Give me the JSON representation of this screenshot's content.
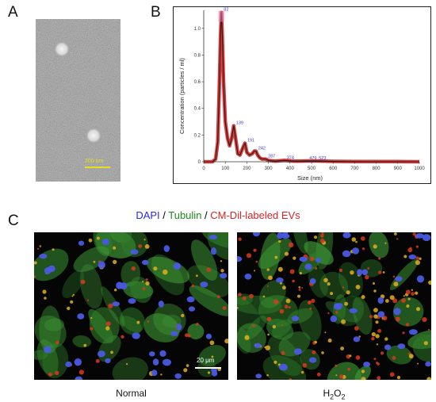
{
  "panels": {
    "a": "A",
    "b": "B",
    "c": "C"
  },
  "tem": {
    "scale_label": "200 nm",
    "scale_color": "#e7e01a"
  },
  "chart_data": {
    "type": "line",
    "xlabel": "Size (nm)",
    "ylabel": "Concentration (particles / ml)",
    "xlim": [
      0,
      1000
    ],
    "ylim": [
      0,
      1.1
    ],
    "x_ticks": [
      "0",
      "100",
      "200",
      "300",
      "400",
      "500",
      "600",
      "700",
      "800",
      "900",
      "1000"
    ],
    "y_ticks": [
      "0",
      "0.2",
      "0.4",
      "0.6",
      "0.8",
      "1.0"
    ],
    "grid": false,
    "series": [
      {
        "color": "#111111",
        "band_color": "#cc1a1a",
        "x": [
          0,
          40,
          55,
          65,
          72,
          78,
          82,
          86,
          92,
          100,
          110,
          120,
          130,
          139,
          148,
          158,
          168,
          180,
          191,
          200,
          212,
          225,
          235,
          242,
          250,
          260,
          270,
          287,
          300,
          330,
          374,
          420,
          479,
          523,
          600,
          700,
          800,
          900,
          1000
        ],
        "y": [
          0,
          0,
          0.02,
          0.15,
          0.55,
          0.95,
          1.12,
          0.95,
          0.6,
          0.3,
          0.18,
          0.12,
          0.18,
          0.27,
          0.17,
          0.06,
          0.05,
          0.1,
          0.14,
          0.07,
          0.05,
          0.06,
          0.08,
          0.08,
          0.05,
          0.03,
          0.02,
          0.02,
          0.01,
          0.005,
          0.01,
          0.005,
          0.006,
          0.006,
          0.003,
          0.002,
          0.001,
          0.001,
          0
        ]
      }
    ],
    "peak_labels": [
      {
        "x": 82,
        "y": 1.12,
        "text": "82"
      },
      {
        "x": 139,
        "y": 0.27,
        "text": "139"
      },
      {
        "x": 191,
        "y": 0.14,
        "text": "191"
      },
      {
        "x": 242,
        "y": 0.08,
        "text": "242"
      },
      {
        "x": 287,
        "y": 0.02,
        "text": "287"
      },
      {
        "x": 374,
        "y": 0.01,
        "text": "374"
      },
      {
        "x": 479,
        "y": 0.006,
        "text": "479"
      },
      {
        "x": 523,
        "y": 0.006,
        "text": "523"
      }
    ]
  },
  "stain_title": {
    "dapi": "DAPI",
    "sep1": " / ",
    "tubulin": "Tubulin",
    "sep2": " / ",
    "evs": "CM-Dil-labeled EVs",
    "dapi_color": "#2b2bd6",
    "tubulin_color": "#1c8a1c",
    "evs_color": "#d82424"
  },
  "micrographs": {
    "scale_label": "20 μm",
    "normal_label": "Normal",
    "h2o2_label": "H2O2"
  }
}
